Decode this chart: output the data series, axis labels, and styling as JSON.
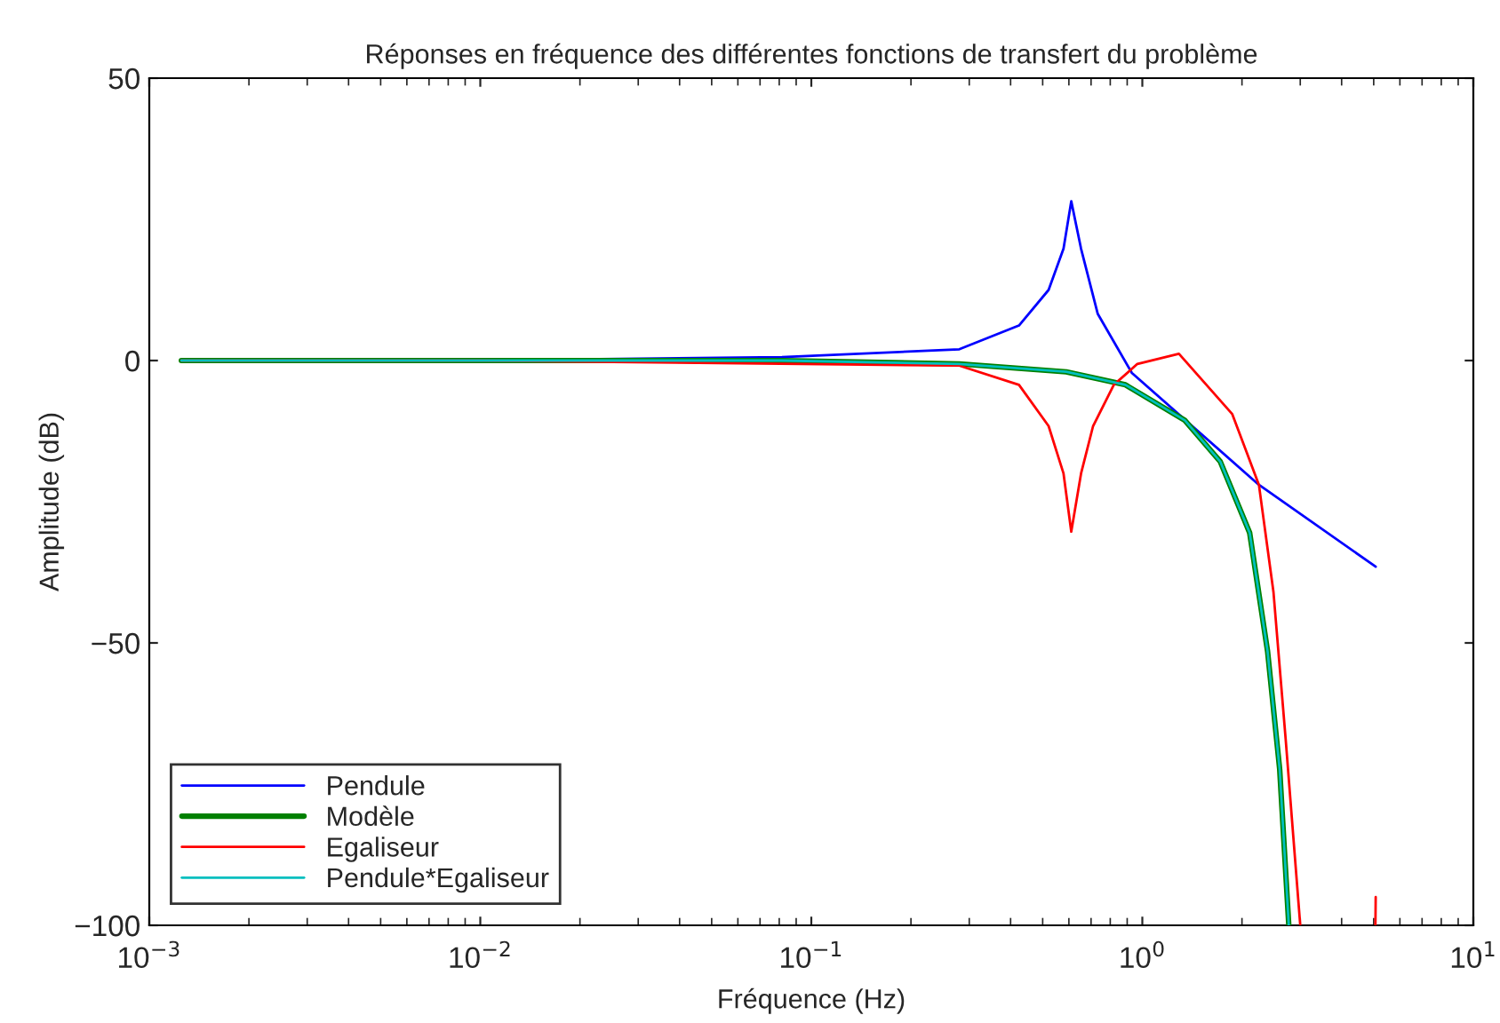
{
  "chart_data": {
    "type": "line",
    "title": "Réponses en fréquence des différentes fonctions de transfert du problème",
    "xlabel": "Fréquence (Hz)",
    "ylabel": "Amplitude (dB)",
    "log": "x",
    "xlim": [
      0.001,
      10
    ],
    "ylim": [
      -100,
      50
    ],
    "xticks": [
      {
        "value": 0.001,
        "label": "10$^{−3}$"
      },
      {
        "value": 0.01,
        "label": "10$^{−2}$"
      },
      {
        "value": 0.1,
        "label": "10$^{−1}$"
      },
      {
        "value": 1,
        "label": "10$^{0}$"
      },
      {
        "value": 10,
        "label": "10$^{1}$"
      }
    ],
    "yticks": [
      {
        "value": -100,
        "label": "−100"
      },
      {
        "value": -50,
        "label": "−50"
      },
      0,
      50
    ],
    "grid": false,
    "legend": "bottom left",
    "line_style": "solid",
    "marker": "none",
    "series": [
      {
        "name": "Pendule",
        "color": "#0000ff",
        "x": [
          0.00125,
          0.01,
          0.0815,
          0.28,
          0.424,
          0.521,
          0.578,
          0.61,
          0.653,
          0.733,
          0.93,
          2.25,
          5.07
        ],
        "values": [
          0,
          0,
          0.6,
          2.0,
          6.2,
          12.5,
          19.8,
          28.2,
          19.8,
          8.3,
          -2.2,
          -22,
          -36.5
        ]
      },
      {
        "name": "Modèle",
        "color": "#008000",
        "x": [
          0.00125,
          0.01,
          0.0815,
          0.28,
          0.589,
          0.889,
          1.345,
          1.72,
          2.11,
          2.39,
          2.6,
          2.77
        ],
        "values": [
          0,
          0,
          0,
          -0.6,
          -2.0,
          -4.3,
          -10.6,
          -17.9,
          -30.5,
          -51.5,
          -72.4,
          -100
        ]
      },
      {
        "name": "Egaliseur",
        "color": "#ff0000",
        "x": [
          0.00125,
          0.01,
          0.28,
          0.424,
          0.521,
          0.578,
          0.61,
          0.653,
          0.71,
          0.82,
          0.966,
          1.29,
          1.87,
          2.25,
          2.49,
          2.71,
          3.0,
          4.0,
          5.06,
          5.07
        ],
        "values": [
          0,
          0,
          -0.9,
          -4.3,
          -11.6,
          -20,
          -30.3,
          -20,
          -11.6,
          -4.3,
          -0.6,
          1.2,
          -9.5,
          -22,
          -41,
          -67,
          -100,
          null,
          -100,
          -95
        ]
      },
      {
        "name": "Pendule*Egaliseur",
        "color": "#00bfbf",
        "x": [
          0.00125,
          0.01,
          0.0815,
          0.28,
          0.589,
          0.889,
          1.345,
          1.72,
          2.11,
          2.39,
          2.6,
          2.77
        ],
        "values": [
          0,
          0,
          0,
          -0.6,
          -2.0,
          -4.3,
          -10.6,
          -17.9,
          -30.5,
          -51.5,
          -72.4,
          -100
        ]
      }
    ]
  }
}
